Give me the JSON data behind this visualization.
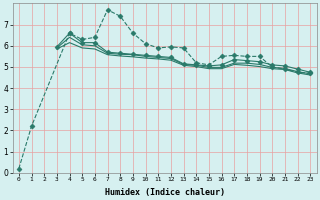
{
  "xlabel": "Humidex (Indice chaleur)",
  "ylabel": "",
  "bg_color": "#d6f0f0",
  "line_color": "#2a7a6a",
  "grid_color": "#e8a0a0",
  "xlim": [
    -0.5,
    23.5
  ],
  "ylim": [
    0,
    8
  ],
  "xticks": [
    0,
    1,
    2,
    3,
    4,
    5,
    6,
    7,
    8,
    9,
    10,
    11,
    12,
    13,
    14,
    15,
    16,
    17,
    18,
    19,
    20,
    21,
    22,
    23
  ],
  "yticks": [
    0,
    1,
    2,
    3,
    4,
    5,
    6,
    7
  ],
  "series": [
    {
      "x": [
        0,
        1,
        4,
        5,
        6,
        7,
        8,
        9,
        10,
        11,
        12,
        13,
        14,
        15,
        16,
        17,
        18,
        19,
        20,
        21,
        22,
        23
      ],
      "y": [
        0.2,
        2.2,
        6.6,
        6.3,
        6.4,
        7.7,
        7.4,
        6.6,
        6.1,
        5.9,
        5.95,
        5.9,
        5.2,
        5.1,
        5.5,
        5.55,
        5.5,
        5.5,
        5.0,
        4.9,
        4.75,
        4.7
      ],
      "marker": "D",
      "linestyle": "--",
      "linewidth": 0.8,
      "markersize": 2.5
    },
    {
      "x": [
        3,
        4,
        5,
        6,
        7,
        8,
        9,
        10,
        11,
        12,
        13,
        14,
        15,
        16,
        17,
        18,
        19,
        20,
        21,
        22,
        23
      ],
      "y": [
        5.95,
        6.6,
        6.15,
        6.15,
        5.7,
        5.65,
        5.6,
        5.55,
        5.5,
        5.45,
        5.15,
        5.1,
        5.05,
        5.1,
        5.35,
        5.3,
        5.25,
        5.1,
        5.05,
        4.9,
        4.75
      ],
      "marker": "D",
      "linestyle": "-",
      "linewidth": 0.8,
      "markersize": 2.5
    },
    {
      "x": [
        3,
        4,
        5,
        6,
        7,
        8,
        9,
        10,
        11,
        12,
        13,
        14,
        15,
        16,
        17,
        18,
        19,
        20,
        21,
        22,
        23
      ],
      "y": [
        5.9,
        6.4,
        6.05,
        6.0,
        5.65,
        5.6,
        5.58,
        5.5,
        5.45,
        5.4,
        5.12,
        5.08,
        4.98,
        4.98,
        5.18,
        5.18,
        5.12,
        4.98,
        4.93,
        4.78,
        4.68
      ],
      "marker": null,
      "linestyle": "-",
      "linewidth": 0.8,
      "markersize": 0
    },
    {
      "x": [
        3,
        4,
        5,
        6,
        7,
        8,
        9,
        10,
        11,
        12,
        13,
        14,
        15,
        16,
        17,
        18,
        19,
        20,
        21,
        22,
        23
      ],
      "y": [
        5.85,
        6.15,
        5.9,
        5.85,
        5.58,
        5.52,
        5.48,
        5.42,
        5.38,
        5.32,
        5.08,
        5.02,
        4.92,
        4.92,
        5.12,
        5.08,
        5.02,
        4.92,
        4.88,
        4.72,
        4.62
      ],
      "marker": null,
      "linestyle": "-",
      "linewidth": 0.8,
      "markersize": 0
    }
  ]
}
